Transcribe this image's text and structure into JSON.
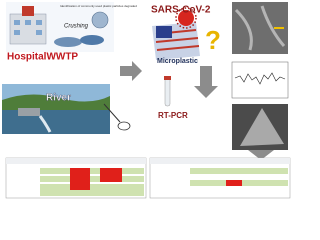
{
  "sources": {
    "caption": "Identification of commonly used plastic particles degraded",
    "crushing": "Crushing",
    "hospital": "HospitalWWTP",
    "river": "River"
  },
  "analysis": {
    "virus": "SARS-CoV-2",
    "microplastic": "Microplastic",
    "question": "?",
    "method": "RT-PCR"
  }
}
